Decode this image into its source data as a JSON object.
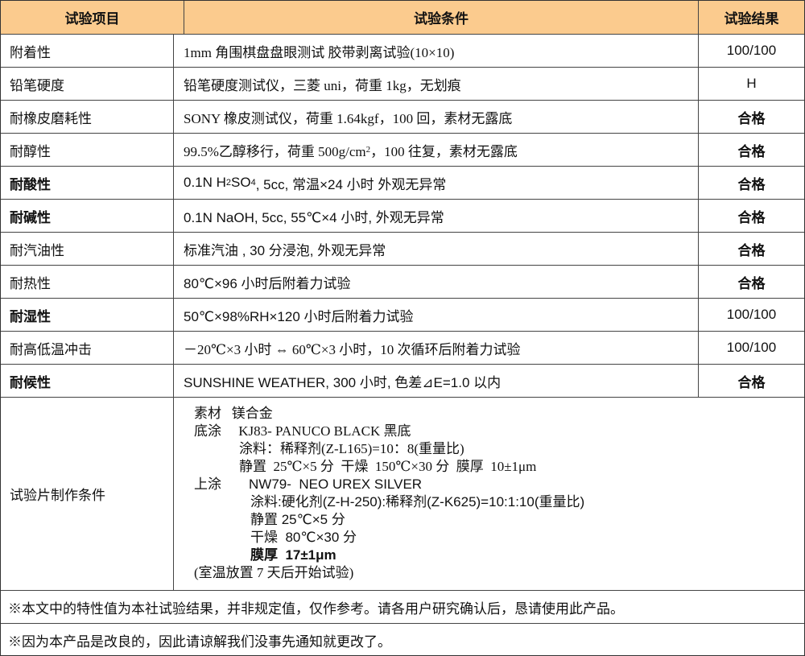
{
  "header": {
    "item": "试验项目",
    "condition": "试验条件",
    "result": "试验结果"
  },
  "colors": {
    "header_bg": "#FBCB8E",
    "border": "#444444"
  },
  "rows": [
    {
      "item": "附着性",
      "condition": "1mm 角围棋盘盘眼测试 胶带剥离试验(10×10)",
      "result": "100/100"
    },
    {
      "item": "铅笔硬度",
      "condition": "铅笔硬度测试仪，三菱 uni，荷重 1kg，无划痕",
      "result": "H"
    },
    {
      "item": "耐橡皮磨耗性",
      "condition": "SONY 橡皮测试仪，荷重 1.64kgf，100 回，素材无露底",
      "result": "合格"
    },
    {
      "item": "耐醇性",
      "condition_pre": "99.5%乙醇移行，荷重 500g/cm",
      "condition_sup": "2",
      "condition_post": "，100 往复，素材无露底",
      "result": "合格"
    },
    {
      "item": "耐酸性",
      "condition_pre": "0.1N H",
      "condition_sub1": "2",
      "condition_mid": "SO",
      "condition_sub2": "4",
      "condition_post": ", 5cc, 常温×24 小时  外观无异常",
      "result": "合格"
    },
    {
      "item": "耐碱性",
      "condition": "0.1N NaOH, 5cc, 55℃×4 小时, 外观无异常",
      "result": "合格"
    },
    {
      "item": "耐汽油性",
      "condition": "标准汽油 , 30 分浸泡, 外观无异常",
      "result": "合格"
    },
    {
      "item": "耐热性",
      "condition": "80℃×96 小时后附着力试验",
      "result": "合格"
    },
    {
      "item": "耐湿性",
      "condition": "50℃×98%RH×120 小时后附着力试验",
      "result": "100/100"
    },
    {
      "item": "耐高低温冲击",
      "condition": "－20℃×3 小时 ⇔ 60℃×3 小时，10 次循环后附着力试验",
      "result": "100/100"
    },
    {
      "item": "耐候性",
      "condition": "SUNSHINE WEATHER, 300 小时, 色差⊿E=1.0 以内",
      "result": "合格"
    }
  ],
  "specimen": {
    "label": "试验片制作条件",
    "lines": [
      "素材   镁合金",
      "底涂     KJ83- PANUCO BLACK 黑底",
      "涂料：稀释剂(Z-L165)=10：8(重量比)",
      "静置  25℃×5 分  干燥  150℃×30 分  膜厚  10±1μm",
      "上涂",
      "NW79-  NEO UREX SILVER",
      "涂料:硬化剂(Z-H-250):稀释剂(Z-K625)=10:1:10(重量比)",
      "静置 25℃×5 分",
      "干燥  80℃×30 分",
      "膜厚  17±1μm",
      "(室温放置 7 天后开始试验)"
    ]
  },
  "notes": [
    "※本文中的特性值为本社试验结果，并非规定值，仅作参考。请各用户研究确认后，恳请使用此产品。",
    "※因为本产品是改良的，因此请谅解我们没事先通知就更改了。"
  ]
}
